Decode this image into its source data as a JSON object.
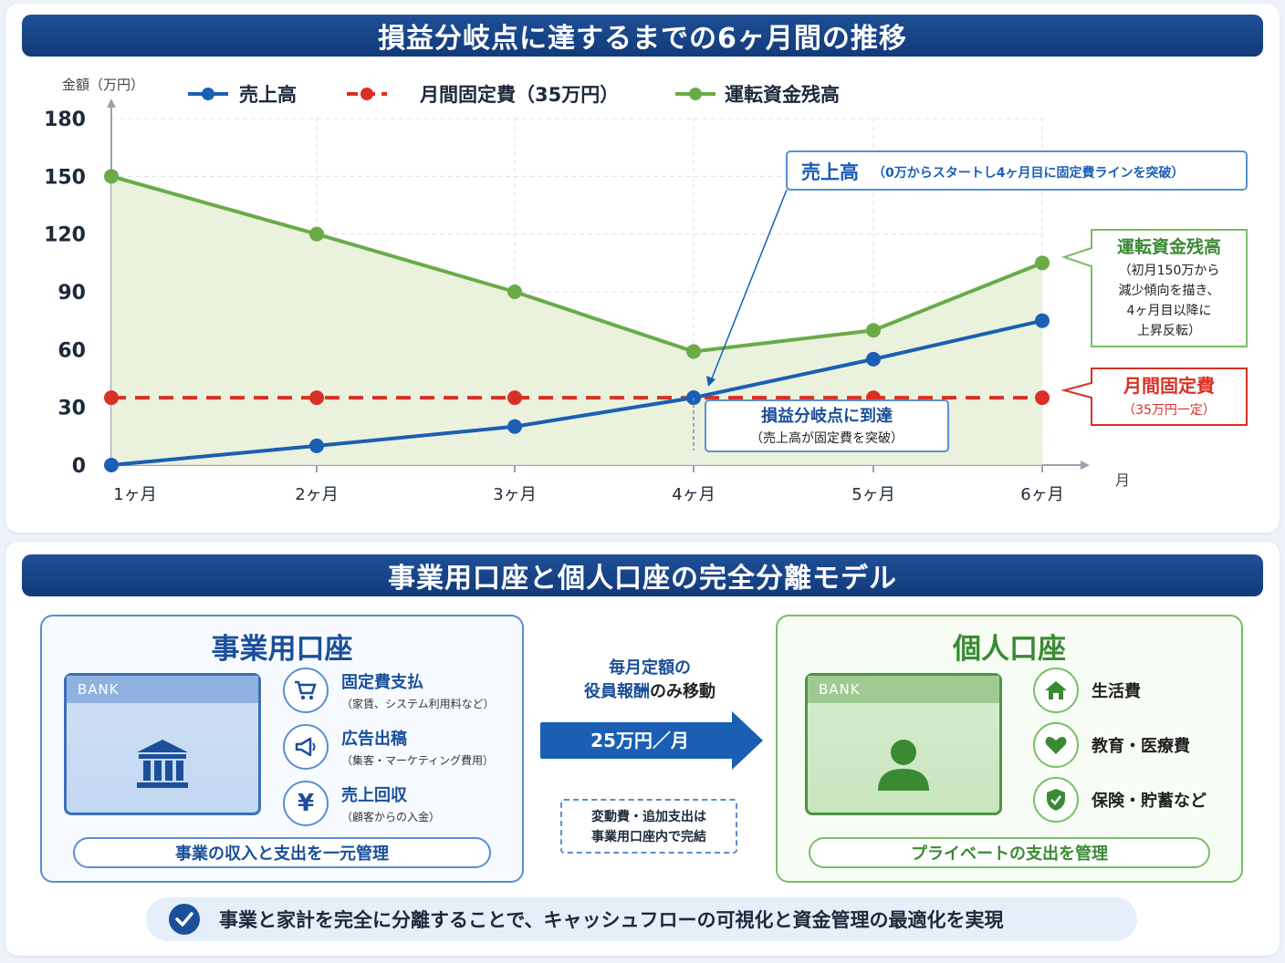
{
  "top_title": "損益分岐点に達するまでの6ヶ月間の推移",
  "bottom_title": "事業用口座と個人口座の完全分離モデル",
  "colors": {
    "sales": "#1a5fb4",
    "fixed_cost": "#d93025",
    "balance": "#6aab47",
    "balance_fill": "#e8f1da",
    "banner": "#163f83"
  },
  "chart_data": {
    "type": "line",
    "ylabel": "金額（万円）",
    "xlabel": "月",
    "categories": [
      "1ヶ月",
      "2ヶ月",
      "3ヶ月",
      "4ヶ月",
      "5ヶ月",
      "6ヶ月"
    ],
    "yticks": [
      0,
      30,
      60,
      90,
      120,
      150,
      180
    ],
    "ylim": [
      0,
      180
    ],
    "grid": true,
    "legend_position": "top",
    "series": [
      {
        "name": "売上高",
        "style": "solid",
        "values": [
          0,
          10,
          20,
          35,
          55,
          75
        ]
      },
      {
        "name": "月間固定費（35万円）",
        "style": "dashed",
        "values": [
          35,
          35,
          35,
          35,
          35,
          35
        ]
      },
      {
        "name": "運転資金残高",
        "style": "solid-area",
        "values": [
          150,
          120,
          90,
          59,
          70,
          105
        ]
      }
    ],
    "annotations": {
      "sales_title": "売上高",
      "sales_note": "（0万からスタートし4ヶ月目に固定費ラインを突破）",
      "breakeven_title": "損益分岐点に到達",
      "breakeven_sub": "（売上高が固定費を突破）",
      "balance_title": "運転資金残高",
      "balance_lines": [
        "（初月150万から",
        "減少傾向を描き、",
        "4ヶ月目以降に",
        "上昇反転）"
      ],
      "fixed_title": "月間固定費",
      "fixed_sub": "（35万円一定）"
    }
  },
  "business_account": {
    "title": "事業用口座",
    "bank_label": "BANK",
    "items": [
      {
        "icon": "cart-icon",
        "title": "固定費支払",
        "sub": "（家賃、システム利用料など）"
      },
      {
        "icon": "megaphone-icon",
        "title": "広告出稿",
        "sub": "（集客・マーケティング費用）"
      },
      {
        "icon": "yen-icon",
        "title": "売上回収",
        "sub": "（顧客からの入金）"
      }
    ],
    "pill": "事業の収入と支出を一元管理"
  },
  "transfer": {
    "line1": "毎月定額の",
    "line2_highlight": "役員報酬",
    "line2_rest": "のみ移動",
    "amount": "25万円／月",
    "note1": "変動費・追加支出は",
    "note2": "事業用口座内で完結"
  },
  "personal_account": {
    "title": "個人口座",
    "bank_label": "BANK",
    "items": [
      {
        "icon": "home-icon",
        "label": "生活費"
      },
      {
        "icon": "heart-icon",
        "label": "教育・医療費"
      },
      {
        "icon": "shield-icon",
        "label": "保険・貯蓄など"
      }
    ],
    "pill": "プライベートの支出を管理"
  },
  "summary": "事業と家計を完全に分離することで、キャッシュフローの可視化と資金管理の最適化を実現"
}
